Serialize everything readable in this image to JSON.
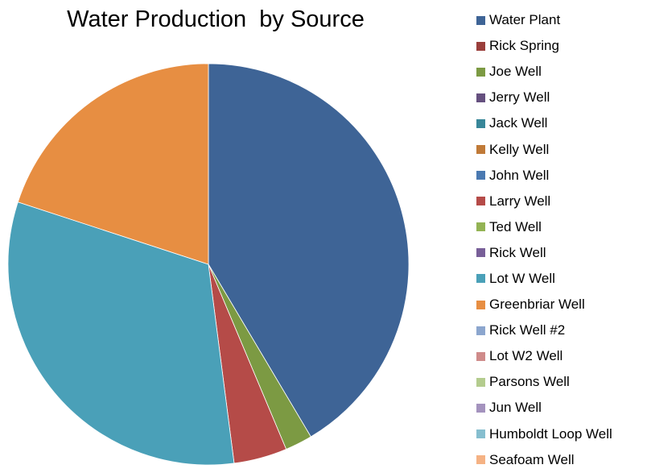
{
  "chart_data": {
    "type": "pie",
    "title": "Water Production  by Source",
    "legend_position": "right",
    "slices": [
      {
        "label": "Water Plant",
        "value": 41.5,
        "color": "#3E6496"
      },
      {
        "label": "Rick Spring",
        "value": 0,
        "color": "#9A3E3B"
      },
      {
        "label": "Joe Well",
        "value": 2.2,
        "color": "#7C9A43"
      },
      {
        "label": "Jerry Well",
        "value": 0,
        "color": "#65507F"
      },
      {
        "label": "Jack Well",
        "value": 0,
        "color": "#388799"
      },
      {
        "label": "Kelly Well",
        "value": 0,
        "color": "#C07A38"
      },
      {
        "label": "John Well",
        "value": 0,
        "color": "#4A79B1"
      },
      {
        "label": "Larry Well",
        "value": 4.3,
        "color": "#B54B48"
      },
      {
        "label": "Ted Well",
        "value": 0,
        "color": "#93B354"
      },
      {
        "label": "Rick Well",
        "value": 0,
        "color": "#785F98"
      },
      {
        "label": "Lot W Well",
        "value": 32.1,
        "color": "#4AA0B8"
      },
      {
        "label": "Greenbriar Well",
        "value": 20.0,
        "color": "#E78E42"
      },
      {
        "label": "Rick Well #2",
        "value": 0,
        "color": "#8CA6CE"
      },
      {
        "label": "Lot W2 Well",
        "value": 0,
        "color": "#CF8B8A"
      },
      {
        "label": "Parsons Well",
        "value": 0,
        "color": "#B4CC8E"
      },
      {
        "label": "Jun Well",
        "value": 0,
        "color": "#A493BE"
      },
      {
        "label": "Humboldt Loop Well",
        "value": 0,
        "color": "#86BECF"
      },
      {
        "label": "Seafoam Well",
        "value": 0,
        "color": "#F5B284"
      }
    ]
  }
}
